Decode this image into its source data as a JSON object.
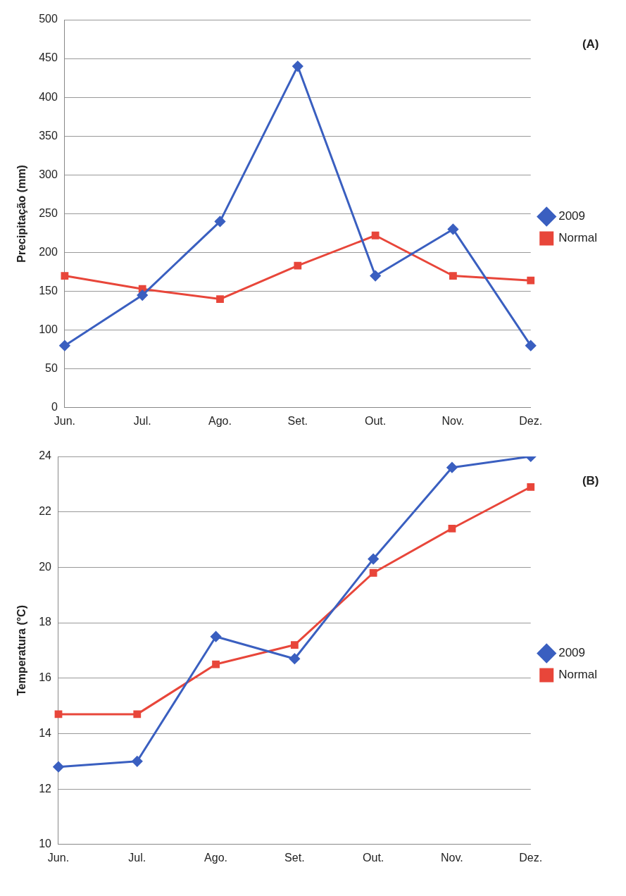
{
  "chart_data": [
    {
      "type": "line",
      "ylabel": "Precipitação (mm)",
      "annotations": [
        "(A)"
      ],
      "categories": [
        "Jun.",
        "Jul.",
        "Ago.",
        "Set.",
        "Out.",
        "Nov.",
        "Dez."
      ],
      "series": [
        {
          "name": "2009",
          "color": "#3a5fc0",
          "marker": "diamond",
          "values": [
            80,
            145,
            240,
            440,
            170,
            230,
            80
          ]
        },
        {
          "name": "Normal",
          "color": "#e8463a",
          "marker": "square",
          "values": [
            170,
            153,
            140,
            183,
            222,
            170,
            164
          ]
        }
      ],
      "ylim": [
        0,
        500
      ],
      "yticks": [
        0,
        50,
        100,
        150,
        200,
        250,
        300,
        350,
        400,
        450,
        500
      ],
      "grid": "y",
      "legend": "right",
      "line_style": "solid"
    },
    {
      "type": "line",
      "ylabel": "Temperatura (°C)",
      "annotations": [
        "(B)"
      ],
      "categories": [
        "Jun.",
        "Jul.",
        "Ago.",
        "Set.",
        "Out.",
        "Nov.",
        "Dez."
      ],
      "series": [
        {
          "name": "2009",
          "color": "#3a5fc0",
          "marker": "diamond",
          "values": [
            12.8,
            13.0,
            17.5,
            16.7,
            20.3,
            23.6,
            24.0
          ]
        },
        {
          "name": "Normal",
          "color": "#e8463a",
          "marker": "square",
          "values": [
            14.7,
            14.7,
            16.5,
            17.2,
            19.8,
            21.4,
            22.9
          ]
        }
      ],
      "ylim": [
        10,
        24
      ],
      "yticks": [
        10,
        12,
        14,
        16,
        18,
        20,
        22,
        24
      ],
      "grid": "y",
      "legend": "right",
      "line_style": "solid"
    }
  ]
}
